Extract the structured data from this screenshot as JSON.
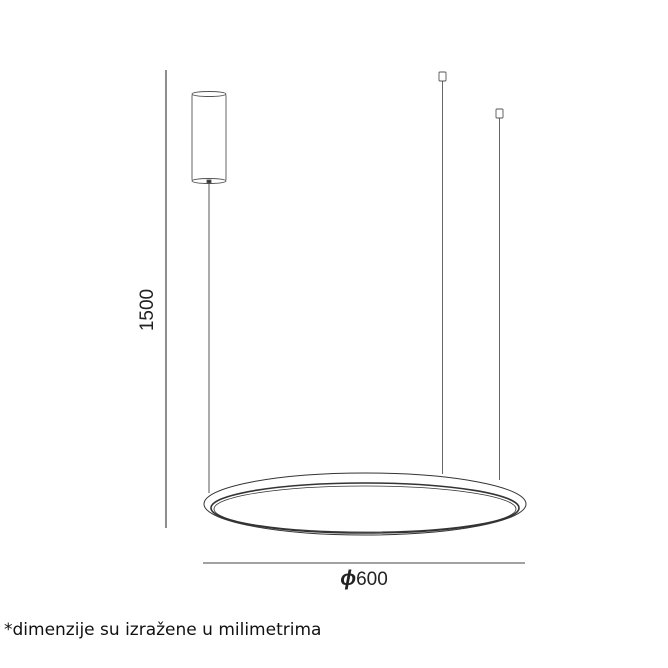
{
  "dimensions": {
    "height_label": "1500",
    "diameter_symbol": "ϕ",
    "diameter_value": "600"
  },
  "note": "*dimenzije su izražene u milimetrima",
  "line_color": "#333333"
}
